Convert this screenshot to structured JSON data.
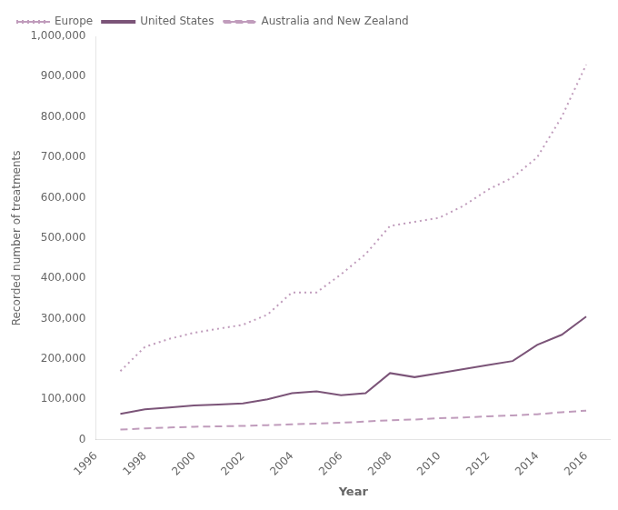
{
  "chart_data": {
    "type": "line",
    "x": [
      1997,
      1998,
      1999,
      2000,
      2001,
      2002,
      2003,
      2004,
      2005,
      2006,
      2007,
      2008,
      2009,
      2010,
      2011,
      2012,
      2013,
      2014,
      2015,
      2016
    ],
    "series": [
      {
        "name": "Europe",
        "color": "#c09cbc",
        "line_style": "dotted",
        "values": [
          170000,
          230000,
          250000,
          265000,
          275000,
          285000,
          310000,
          365000,
          365000,
          410000,
          460000,
          530000,
          540000,
          550000,
          580000,
          620000,
          650000,
          700000,
          800000,
          930000
        ]
      },
      {
        "name": "United States",
        "color": "#7b5478",
        "line_style": "solid",
        "values": [
          64000,
          75000,
          80000,
          85000,
          87000,
          90000,
          100000,
          115000,
          120000,
          110000,
          115000,
          165000,
          155000,
          165000,
          175000,
          185000,
          195000,
          235000,
          260000,
          305000
        ]
      },
      {
        "name": "Australia and New Zealand",
        "color": "#c09cbc",
        "line_style": "dashed",
        "values": [
          25000,
          28000,
          30000,
          32000,
          33000,
          34000,
          36000,
          38000,
          40000,
          42000,
          45000,
          48000,
          50000,
          53000,
          55000,
          58000,
          60000,
          63000,
          68000,
          72000
        ]
      }
    ],
    "xlabel": "Year",
    "ylabel": "Recorded number of treatments",
    "xlim": [
      1996,
      2017
    ],
    "ylim": [
      0,
      1000000
    ],
    "xticks": [
      1996,
      1998,
      2000,
      2002,
      2004,
      2006,
      2008,
      2010,
      2012,
      2014,
      2016
    ],
    "yticks": [
      0,
      {
        "value": 100000,
        "label": "100,000"
      },
      {
        "value": 200000,
        "label": "200,000"
      },
      {
        "value": 300000,
        "label": "300,000"
      },
      {
        "value": 400000,
        "label": "400,000"
      },
      {
        "value": 500000,
        "label": "500,000"
      },
      {
        "value": 600000,
        "label": "600,000"
      },
      {
        "value": 700000,
        "label": "700,000"
      },
      {
        "value": 800000,
        "label": "800,000"
      },
      {
        "value": 900000,
        "label": "900,000"
      },
      {
        "value": 1000000,
        "label": "1,000,000"
      }
    ],
    "grid": false,
    "legend": "upper left"
  }
}
